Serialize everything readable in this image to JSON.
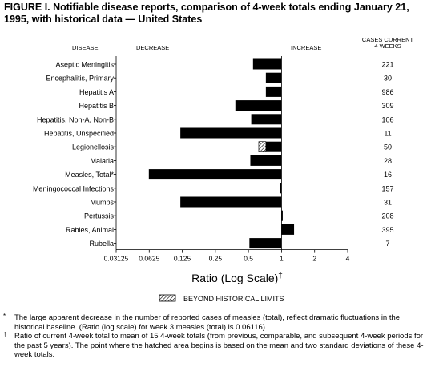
{
  "title": "FIGURE I. Notifiable disease reports, comparison of 4-week totals ending January 21, 1995, with historical data — United States",
  "chart_data": {
    "type": "bar",
    "orientation": "horizontal",
    "scale": "log2",
    "baseline": 1,
    "headers": {
      "disease": "DISEASE",
      "decrease": "DECREASE",
      "increase": "INCREASE",
      "cases": "CASES CURRENT 4 WEEKS"
    },
    "categories": [
      "Aseptic Meningitis",
      "Encephalitis, Primary",
      "Hepatitis A",
      "Hepatitis B",
      "Hepatitis, Non-A, Non-B",
      "Hepatitis, Unspecified",
      "Legionellosis",
      "Malaria",
      "Measles, Total*",
      "Meningococcal Infections",
      "Mumps",
      "Pertussis",
      "Rabies, Animal",
      "Rubella"
    ],
    "ratios": [
      0.55,
      0.72,
      0.72,
      0.38,
      0.53,
      0.12,
      0.62,
      0.52,
      0.062,
      0.97,
      0.12,
      1.0,
      1.3,
      0.51
    ],
    "cases": [
      "221",
      "30",
      "986",
      "309",
      "106",
      "11",
      "50",
      "28",
      "16",
      "157",
      "31",
      "208",
      "395",
      "7"
    ],
    "beyond_historical_limits": [
      {
        "category": "Legionellosis",
        "limit_ratio": 0.72
      }
    ],
    "xlim": [
      0.03125,
      4
    ],
    "xticks": [
      0.03125,
      0.0625,
      0.125,
      0.25,
      0.5,
      1,
      2,
      4
    ],
    "xtick_labels": [
      "0.03125",
      "0.0625",
      "0.125",
      "0.25",
      "0.5",
      "1",
      "2",
      "4"
    ],
    "xlabel": "Ratio (Log Scale)",
    "xlabel_mark": "†",
    "legend": {
      "label": "BEYOND HISTORICAL LIMITS",
      "placement": "bottom"
    },
    "bar_color": "#000000"
  },
  "footnotes": [
    {
      "mark": "*",
      "text": "The large apparent decrease in the number of reported cases of measles (total), reflect dramatic fluctuations in the historical baseline. (Ratio (log scale) for week 3 measles (total) is 0.06116)."
    },
    {
      "mark": "†",
      "text": "Ratio of current 4-week total to mean of 15 4-week totals (from previous, comparable, and subsequent 4-week periods for the past 5 years). The point where the hatched area begins is based on the mean and two standard deviations of these 4-week totals."
    }
  ]
}
